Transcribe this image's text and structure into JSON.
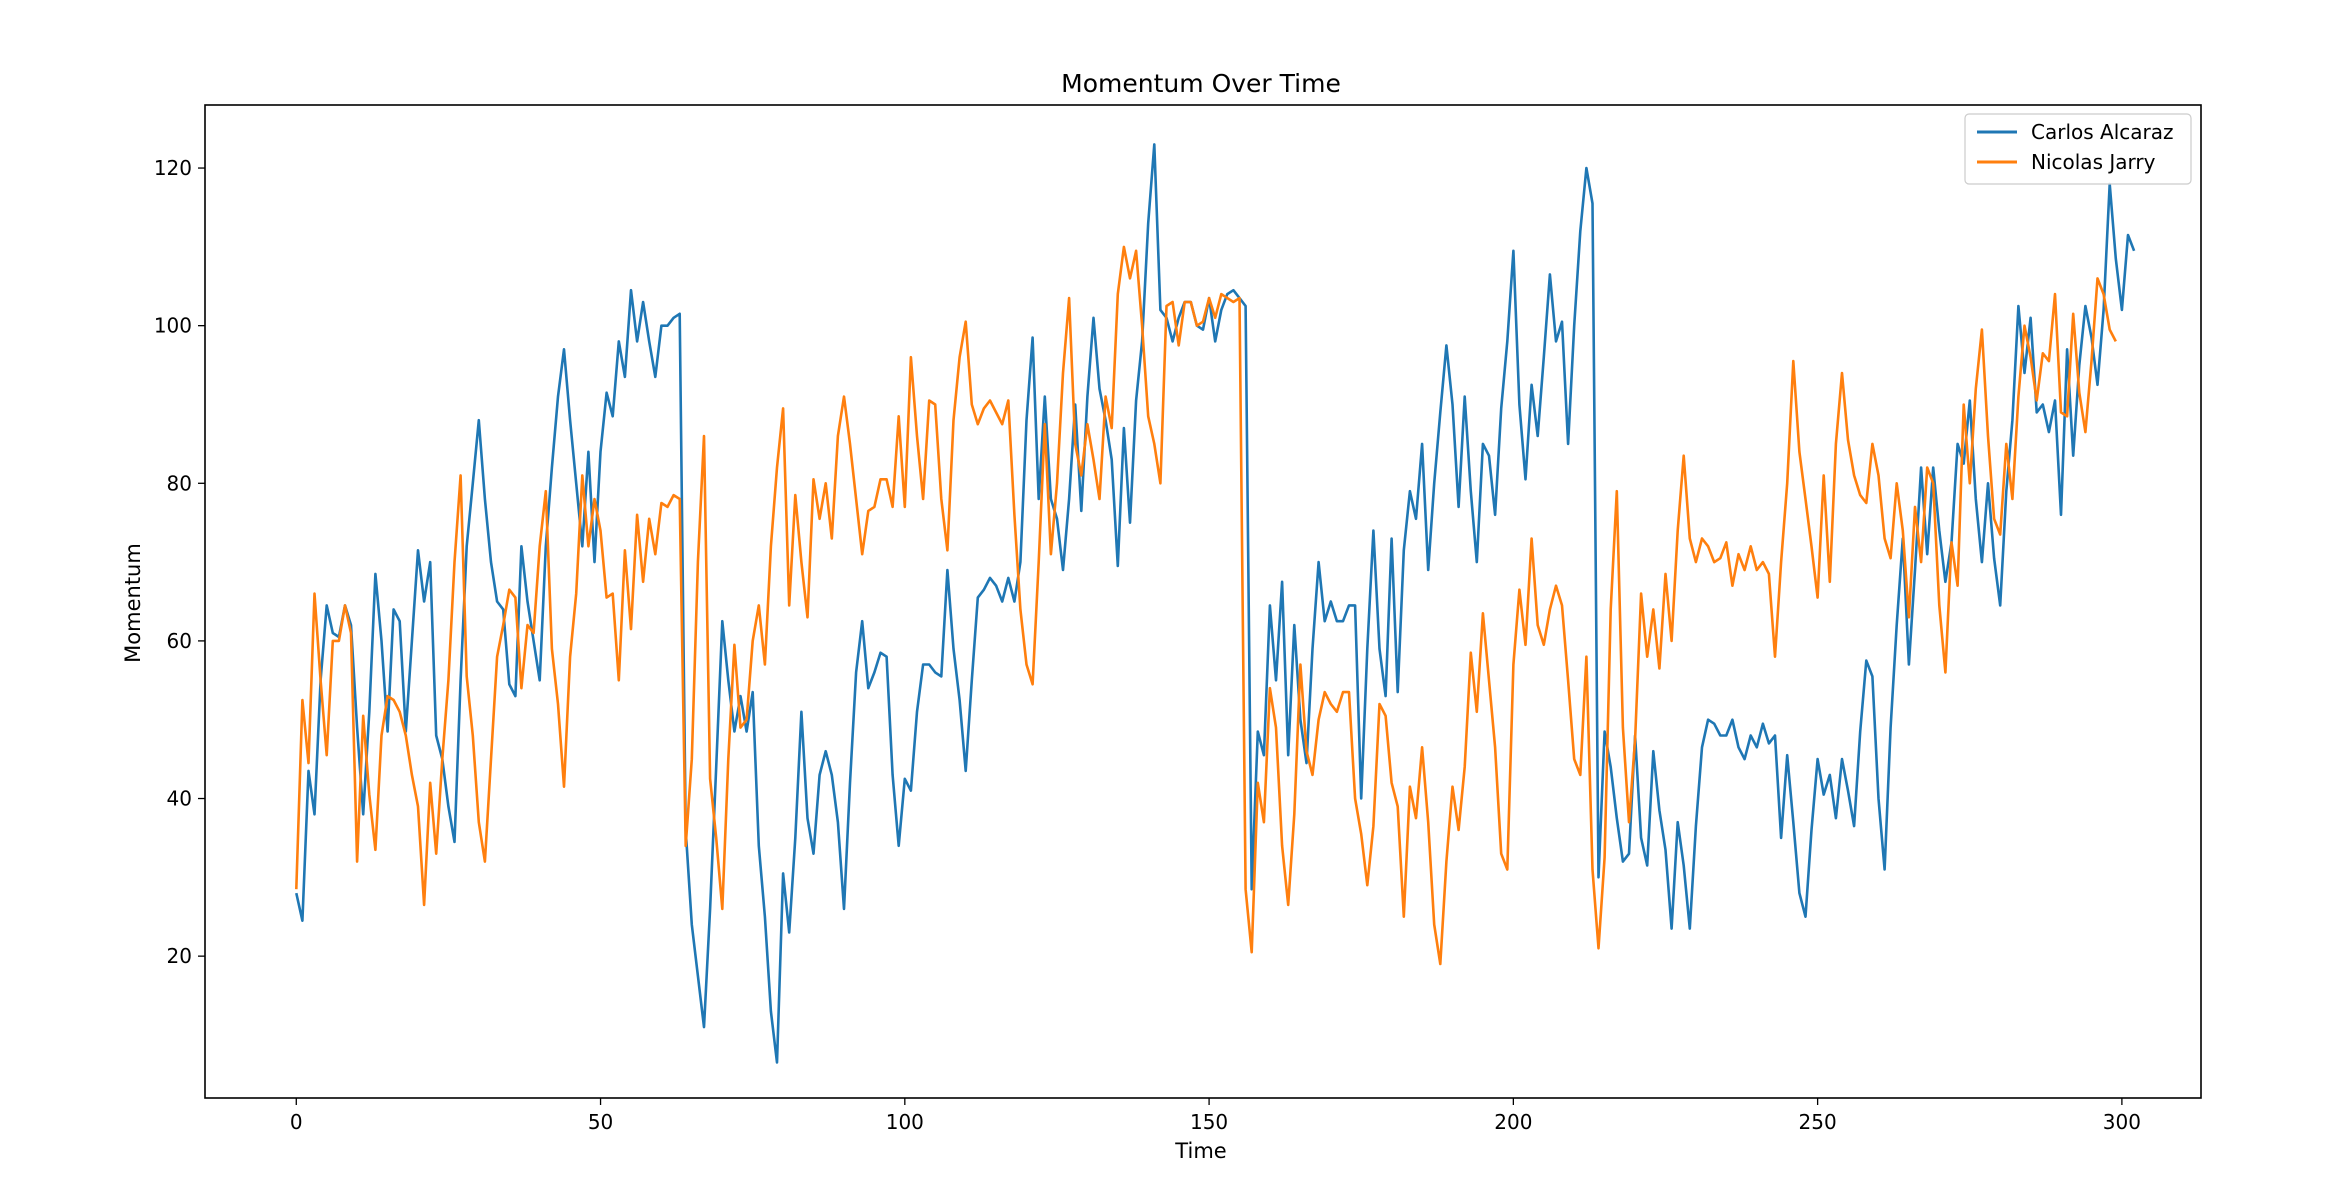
{
  "chart_data": {
    "type": "line",
    "title": "Momentum Over Time",
    "xlabel": "Time",
    "ylabel": "Momentum",
    "xlim": [
      -15,
      313
    ],
    "ylim": [
      2,
      128
    ],
    "xticks": [
      0,
      50,
      100,
      150,
      200,
      250,
      300
    ],
    "yticks": [
      20,
      40,
      60,
      80,
      100,
      120
    ],
    "grid": false,
    "legend_position": "top-right",
    "series": [
      {
        "name": "Carlos Alcaraz",
        "color": "#1f77b4",
        "values": [
          28,
          24.5,
          43.5,
          38,
          55,
          64.5,
          61,
          60.5,
          64.5,
          62,
          49,
          38,
          51,
          68.5,
          60,
          48.5,
          64,
          62.5,
          48.5,
          60,
          71.5,
          65,
          70,
          48,
          45,
          39,
          34.5,
          55,
          72,
          80,
          88,
          78,
          70,
          65,
          64,
          54.5,
          53,
          72,
          65,
          60,
          55,
          72,
          82,
          91,
          97,
          88,
          80,
          72,
          84,
          70,
          84,
          91.5,
          88.5,
          98,
          93.5,
          104.5,
          98,
          103,
          98,
          93.5,
          100,
          100,
          101,
          101.5,
          36,
          24,
          17.5,
          11,
          26,
          44,
          62.5,
          55,
          48.5,
          53,
          48.5,
          53.5,
          34,
          25,
          13,
          6.5,
          30.5,
          23,
          35,
          51,
          37.5,
          33,
          43,
          46,
          43,
          37,
          26,
          42,
          56,
          62.5,
          54,
          56,
          58.5,
          58,
          43,
          34,
          42.5,
          41,
          51,
          57,
          57,
          56,
          55.5,
          69,
          59,
          52.5,
          43.5,
          55,
          65.5,
          66.5,
          68,
          67,
          65,
          68,
          65,
          70,
          88,
          98.5,
          78,
          91,
          78,
          75.5,
          69,
          78,
          90,
          76.5,
          91,
          101,
          92,
          88,
          83,
          69.5,
          87,
          75,
          90.5,
          98,
          113,
          123,
          102,
          101,
          98,
          101,
          103,
          103,
          100,
          99.5,
          103.5,
          98,
          102,
          104,
          104.5,
          103.5,
          102.5,
          28.5,
          48.5,
          45.5,
          64.5,
          55,
          67.5,
          45.5,
          62,
          50,
          44.5,
          59,
          70,
          62.5,
          65,
          62.5,
          62.5,
          64.5,
          64.5,
          40,
          59,
          74,
          59,
          53,
          73,
          53.5,
          71.5,
          79,
          75.5,
          85,
          69,
          80,
          89,
          97.5,
          90,
          77,
          91,
          79,
          70,
          85,
          83.5,
          76,
          89.5,
          98,
          109.5,
          90,
          80.5,
          92.5,
          86,
          96,
          106.5,
          98,
          100.5,
          85,
          100,
          112,
          120,
          115.5,
          30,
          48.5,
          44,
          37.5,
          32,
          33,
          48,
          35,
          31.5,
          46,
          38.5,
          33.5,
          23.5,
          37,
          31.5,
          23.5,
          36.5,
          46.5,
          50,
          49.5,
          48,
          48,
          50,
          46.5,
          45,
          48,
          46.5,
          49.5,
          47,
          48,
          35,
          45.5,
          37,
          28,
          25,
          36,
          45,
          40.5,
          43,
          37.5,
          45,
          41,
          36.5,
          48.5,
          57.5,
          55.5,
          40,
          31,
          49,
          62,
          73,
          57,
          69,
          82,
          71,
          82,
          74,
          67.5,
          72.5,
          85,
          82.5,
          90.5,
          78,
          70,
          80,
          70.5,
          64.5,
          79,
          88,
          102.5,
          94,
          101,
          89,
          90,
          86.5,
          90.5,
          76,
          97,
          83.5,
          95,
          102.5,
          98.5,
          92.5,
          102,
          118,
          108.5,
          102,
          111.5,
          109.5
        ]
      },
      {
        "name": "Nicolas Jarry",
        "color": "#ff7f0e",
        "values": [
          28.5,
          52.5,
          44.5,
          66,
          55,
          45.5,
          60,
          60,
          64.5,
          61,
          32,
          50.5,
          40.5,
          33.5,
          48,
          53,
          52.5,
          51,
          48,
          43,
          39,
          26.5,
          42,
          33,
          45,
          55,
          70,
          81,
          55.5,
          48,
          37,
          32,
          45,
          58,
          62,
          66.5,
          65.5,
          54,
          62,
          61,
          72,
          79,
          59,
          52,
          41.5,
          58,
          66,
          81,
          72,
          78,
          74,
          65.5,
          66,
          55,
          71.5,
          61.5,
          76,
          67.5,
          75.5,
          71,
          77.5,
          77,
          78.5,
          78,
          34,
          45,
          70,
          86,
          42.5,
          35,
          26,
          45,
          59.5,
          49,
          50,
          60,
          64.5,
          57,
          72,
          82,
          89.5,
          64.5,
          78.5,
          70,
          63,
          80.5,
          75.5,
          80,
          73,
          86,
          91,
          85,
          78,
          71,
          76.5,
          77,
          80.5,
          80.5,
          77,
          88.5,
          77,
          96,
          86,
          78,
          90.5,
          90,
          78,
          71.5,
          88,
          96,
          100.5,
          90,
          87.5,
          89.5,
          90.5,
          89,
          87.5,
          90.5,
          76,
          64,
          57,
          54.5,
          70,
          87.5,
          71,
          80,
          94,
          103.5,
          85,
          81,
          87.5,
          83,
          78,
          91,
          87,
          104,
          110,
          106,
          109.5,
          100,
          88.5,
          85,
          80,
          102.5,
          103,
          97.5,
          103,
          103,
          100,
          100.5,
          103.5,
          101,
          104,
          103.5,
          103,
          103.5,
          28.5,
          20.5,
          42,
          37,
          54,
          49,
          34,
          26.5,
          38,
          57,
          46,
          43,
          50,
          53.5,
          52,
          51,
          53.5,
          53.5,
          40,
          35.5,
          29,
          36.5,
          52,
          50.5,
          42,
          39,
          25,
          41.5,
          37.5,
          46.5,
          37,
          24,
          19,
          32,
          41.5,
          36,
          44,
          58.5,
          51,
          63.5,
          55,
          46.5,
          33,
          31,
          57,
          66.5,
          59.5,
          73,
          62,
          59.5,
          64,
          67,
          64.5,
          55,
          45,
          43,
          58,
          31,
          21,
          32.5,
          64,
          79,
          49,
          37,
          47.5,
          66,
          58,
          64,
          56.5,
          68.5,
          60,
          74,
          83.5,
          73,
          70,
          73,
          72,
          70,
          70.5,
          72.5,
          67,
          71,
          69,
          72,
          69,
          70,
          68.5,
          58,
          70,
          80,
          95.5,
          84,
          78,
          72,
          65.5,
          81,
          67.5,
          85,
          94,
          85.5,
          81,
          78.5,
          77.5,
          85,
          81,
          73,
          70.5,
          80,
          74,
          63,
          77,
          70,
          82,
          80,
          64.5,
          56,
          72.5,
          67,
          90,
          80,
          92,
          99.5,
          86,
          75.5,
          73.5,
          85,
          78,
          91,
          100,
          96,
          90.5,
          96.5,
          95.5,
          104,
          89,
          88.5,
          101.5,
          91.5,
          86.5,
          95.5,
          106,
          104,
          99.5,
          98
        ]
      }
    ]
  }
}
